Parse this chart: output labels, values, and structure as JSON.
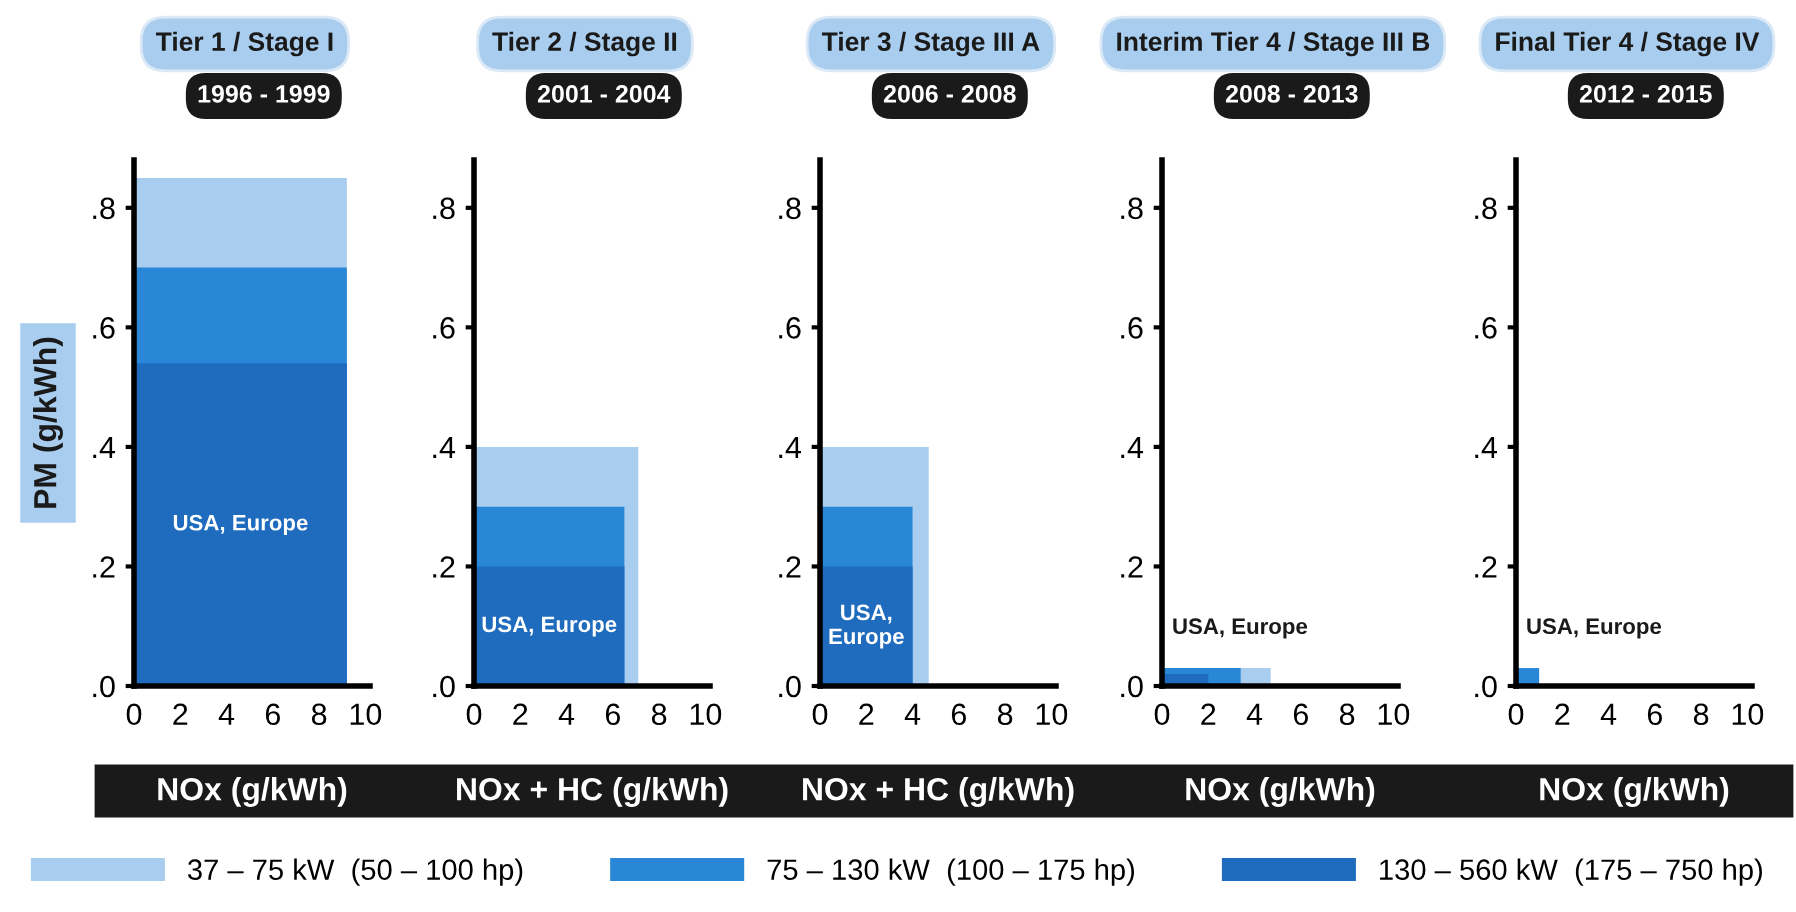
{
  "chart_data": [
    {
      "type": "area",
      "title": "Tier 1 / Stage I",
      "subtitle": "1996 - 1999",
      "xlabel": "NOx (g/kWh)",
      "ylabel": "PM (g/kWh)",
      "xlim": [
        0,
        10.2
      ],
      "ylim": [
        0,
        0.88
      ],
      "xticks": [
        0,
        2,
        4,
        6,
        8,
        10
      ],
      "yticks": [
        {
          "value": 0,
          "label": ".0"
        },
        {
          "value": 0.2,
          "label": ".2"
        },
        {
          "value": 0.4,
          "label": ".4"
        },
        {
          "value": 0.6,
          "label": ".6"
        },
        {
          "value": 0.8,
          "label": ".8"
        }
      ],
      "legend": "bottom",
      "annotations": [
        "USA, Europe"
      ],
      "series": [
        {
          "name": "37 – 75 kW  (50 – 100 hp)",
          "color": "#a9cdee",
          "x": [
            0,
            9.2
          ],
          "values": [
            0.85,
            0.85
          ]
        },
        {
          "name": "75 – 130 kW  (100 – 175 hp)",
          "color": "#2a86d6",
          "x": [
            0,
            9.2
          ],
          "values": [
            0.7,
            0.7
          ]
        },
        {
          "name": "130 – 560 kW  (175 – 750 hp)",
          "color": "#1f6cbf",
          "x": [
            0,
            9.2
          ],
          "values": [
            0.54,
            0.54
          ]
        }
      ]
    },
    {
      "type": "area",
      "title": "Tier 2 / Stage II",
      "subtitle": "2001 - 2004",
      "xlabel": "NOx + HC (g/kWh)",
      "xlim": [
        0,
        10.2
      ],
      "ylim": [
        0,
        0.88
      ],
      "xticks": [
        0,
        2,
        4,
        6,
        8,
        10
      ],
      "yticks": [
        {
          "value": 0,
          "label": ".0"
        },
        {
          "value": 0.2,
          "label": ".2"
        },
        {
          "value": 0.4,
          "label": ".4"
        },
        {
          "value": 0.6,
          "label": ".6"
        },
        {
          "value": 0.8,
          "label": ".8"
        }
      ],
      "annotations": [
        "USA, Europe"
      ],
      "series": [
        {
          "color": "#a9cdee",
          "x": [
            0,
            7.1
          ],
          "values": [
            0.4,
            0.4
          ]
        },
        {
          "color": "#2a86d6",
          "x": [
            0,
            6.5
          ],
          "values": [
            0.3,
            0.3
          ]
        },
        {
          "color": "#1f6cbf",
          "x": [
            0,
            6.5
          ],
          "values": [
            0.2,
            0.2
          ]
        }
      ]
    },
    {
      "type": "area",
      "title": "Tier 3 / Stage III A",
      "subtitle": "2006 - 2008",
      "xlabel": "NOx + HC (g/kWh)",
      "xlim": [
        0,
        10.2
      ],
      "ylim": [
        0,
        0.88
      ],
      "xticks": [
        0,
        2,
        4,
        6,
        8,
        10
      ],
      "yticks": [
        {
          "value": 0,
          "label": ".0"
        },
        {
          "value": 0.2,
          "label": ".2"
        },
        {
          "value": 0.4,
          "label": ".4"
        },
        {
          "value": 0.6,
          "label": ".6"
        },
        {
          "value": 0.8,
          "label": ".8"
        }
      ],
      "annotations": [
        "USA,\nEurope"
      ],
      "series": [
        {
          "color": "#a9cdee",
          "x": [
            0,
            4.7
          ],
          "values": [
            0.4,
            0.4
          ]
        },
        {
          "color": "#2a86d6",
          "x": [
            0,
            4.0
          ],
          "values": [
            0.3,
            0.3
          ]
        },
        {
          "color": "#1f6cbf",
          "x": [
            0,
            4.0
          ],
          "values": [
            0.2,
            0.2
          ]
        }
      ]
    },
    {
      "type": "area",
      "title": "Interim Tier 4 / Stage III B",
      "subtitle": "2008 - 2013",
      "xlabel": "NOx (g/kWh)",
      "xlim": [
        0,
        10.2
      ],
      "ylim": [
        0,
        0.88
      ],
      "xticks": [
        0,
        2,
        4,
        6,
        8,
        10
      ],
      "yticks": [
        {
          "value": 0,
          "label": ".0"
        },
        {
          "value": 0.2,
          "label": ".2"
        },
        {
          "value": 0.4,
          "label": ".4"
        },
        {
          "value": 0.6,
          "label": ".6"
        },
        {
          "value": 0.8,
          "label": ".8"
        }
      ],
      "annotations": [
        "USA, Europe"
      ],
      "series": [
        {
          "color": "#a9cdee",
          "x": [
            0,
            4.7
          ],
          "values": [
            0.03,
            0.03
          ]
        },
        {
          "color": "#2a86d6",
          "x": [
            0,
            3.4
          ],
          "values": [
            0.03,
            0.03
          ]
        },
        {
          "color": "#1f6cbf",
          "x": [
            0,
            2.0
          ],
          "values": [
            0.02,
            0.02
          ]
        }
      ]
    },
    {
      "type": "area",
      "title": "Final Tier 4 / Stage IV",
      "subtitle": "2012 - 2015",
      "xlabel": "NOx (g/kWh)",
      "xlim": [
        0,
        10.2
      ],
      "ylim": [
        0,
        0.88
      ],
      "xticks": [
        0,
        2,
        4,
        6,
        8,
        10
      ],
      "yticks": [
        {
          "value": 0,
          "label": ".0"
        },
        {
          "value": 0.2,
          "label": ".2"
        },
        {
          "value": 0.4,
          "label": ".4"
        },
        {
          "value": 0.6,
          "label": ".6"
        },
        {
          "value": 0.8,
          "label": ".8"
        }
      ],
      "annotations": [
        "USA, Europe"
      ],
      "series": [
        {
          "color": "#2a86d6",
          "x": [
            0,
            1.0
          ],
          "values": [
            0.03,
            0.03
          ]
        }
      ]
    }
  ]
}
